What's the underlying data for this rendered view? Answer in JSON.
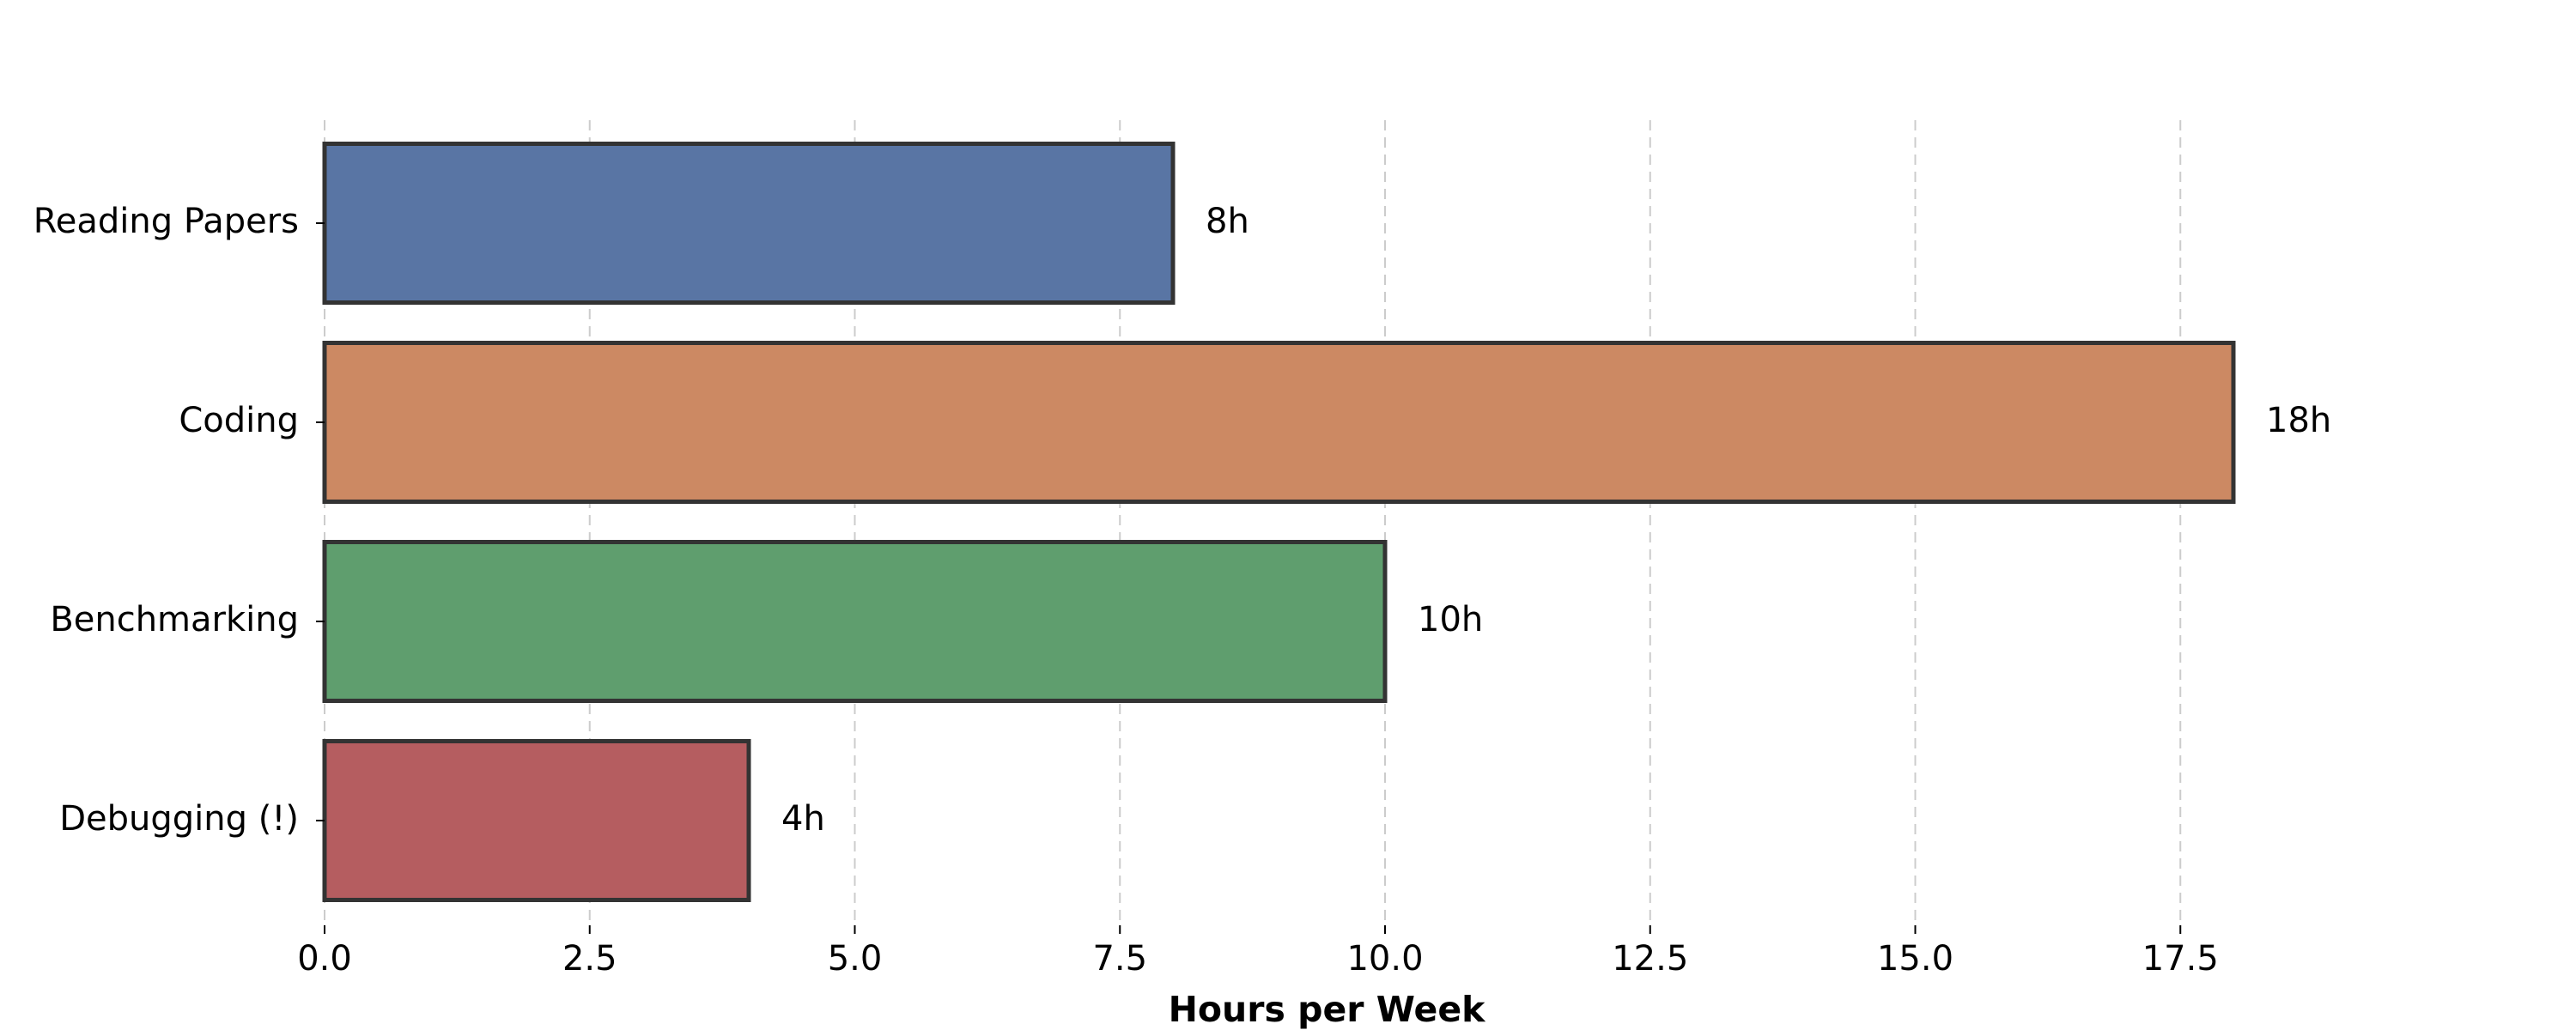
{
  "chart_data": {
    "type": "bar",
    "orientation": "horizontal",
    "categories": [
      "Reading Papers",
      "Coding",
      "Benchmarking",
      "Debugging (!)"
    ],
    "values": [
      8,
      18,
      10,
      4
    ],
    "value_labels": [
      "8h",
      "18h",
      "10h",
      "4h"
    ],
    "colors": [
      "#5975a4",
      "#cc8963",
      "#5f9e6e",
      "#b55d60"
    ],
    "xlabel": "Hours per Week",
    "ylabel": "",
    "xlim": [
      0,
      20
    ],
    "xticks": [
      0.0,
      2.5,
      5.0,
      7.5,
      10.0,
      12.5,
      15.0,
      17.5
    ],
    "xtick_labels": [
      "0.0",
      "2.5",
      "5.0",
      "7.5",
      "10.0",
      "12.5",
      "15.0",
      "17.5"
    ],
    "grid": "x-dashed",
    "legend": "none"
  }
}
